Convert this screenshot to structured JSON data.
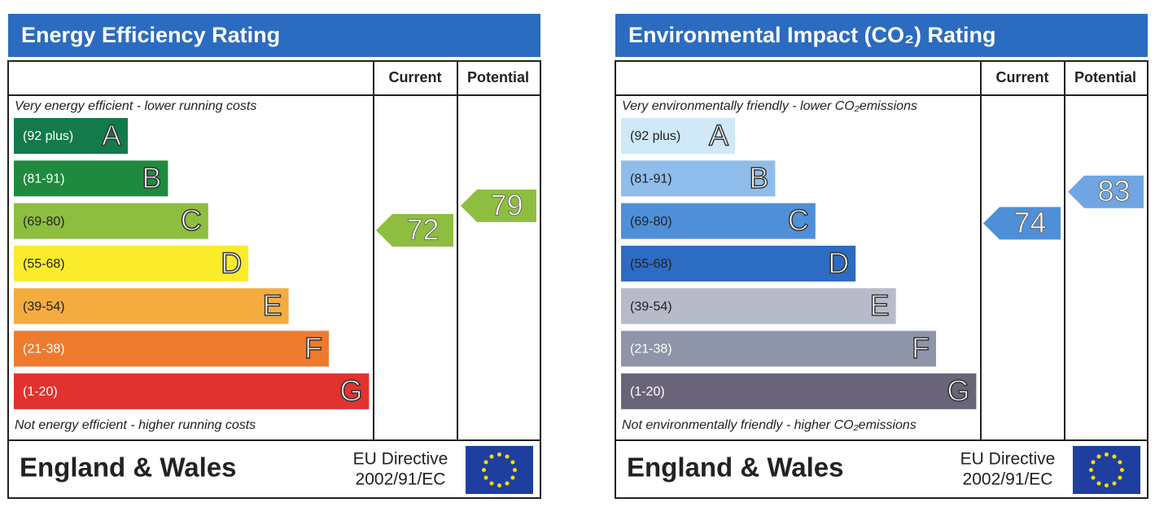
{
  "panels": [
    {
      "title": "Energy Efficiency Rating",
      "columns": [
        "Current",
        "Potential"
      ],
      "top_text": "Very energy efficient - lower running costs",
      "bottom_text": "Not energy efficient - higher running costs",
      "bands": [
        {
          "range": "(92 plus)",
          "letter": "A",
          "color": "#127a4b",
          "text_color": "#ffffff"
        },
        {
          "range": "(81-91)",
          "letter": "B",
          "color": "#1f8a3d",
          "text_color": "#ffffff"
        },
        {
          "range": "(69-80)",
          "letter": "C",
          "color": "#8dbe3f",
          "text_color": "#222222"
        },
        {
          "range": "(55-68)",
          "letter": "D",
          "color": "#fbec2b",
          "text_color": "#222222"
        },
        {
          "range": "(39-54)",
          "letter": "E",
          "color": "#f4ac3f",
          "text_color": "#222222"
        },
        {
          "range": "(21-38)",
          "letter": "F",
          "color": "#ee7a2e",
          "text_color": "#ffffff"
        },
        {
          "range": "(1-20)",
          "letter": "G",
          "color": "#e1322f",
          "text_color": "#ffffff"
        }
      ],
      "current": {
        "value": 72,
        "color": "#8dbe3f"
      },
      "potential": {
        "value": 79,
        "color": "#8dbe3f"
      },
      "region": "England & Wales",
      "directive": [
        "EU Directive",
        "2002/91/EC"
      ]
    },
    {
      "title": "Environmental Impact (CO₂) Rating",
      "columns": [
        "Current",
        "Potential"
      ],
      "top_text": "Very environmentally friendly - lower CO₂emissions",
      "bottom_text": "Not environmentally friendly - higher CO₂emissions",
      "bands": [
        {
          "range": "(92 plus)",
          "letter": "A",
          "color": "#cfe9f8",
          "text_color": "#222222"
        },
        {
          "range": "(81-91)",
          "letter": "B",
          "color": "#8fbdeb",
          "text_color": "#222222"
        },
        {
          "range": "(69-80)",
          "letter": "C",
          "color": "#4f8fd8",
          "text_color": "#222222"
        },
        {
          "range": "(55-68)",
          "letter": "D",
          "color": "#2d6cc3",
          "text_color": "#222222"
        },
        {
          "range": "(39-54)",
          "letter": "E",
          "color": "#b6bac9",
          "text_color": "#222222"
        },
        {
          "range": "(21-38)",
          "letter": "F",
          "color": "#8f95a8",
          "text_color": "#ffffff"
        },
        {
          "range": "(1-20)",
          "letter": "G",
          "color": "#6a6478",
          "text_color": "#ffffff"
        }
      ],
      "current": {
        "value": 74,
        "color": "#4f8fd8"
      },
      "potential": {
        "value": 83,
        "color": "#6ea5e2"
      },
      "region": "England & Wales",
      "directive": [
        "EU Directive",
        "2002/91/EC"
      ]
    }
  ]
}
